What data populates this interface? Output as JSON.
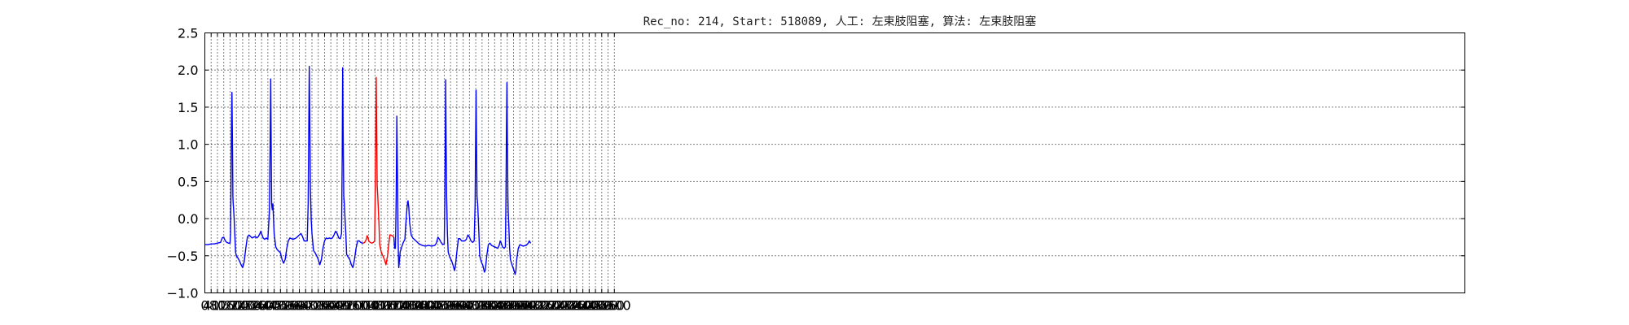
{
  "chart_data": {
    "type": "line",
    "title": "Rec_no: 214, Start: 518089, 人工: 左束肢阻塞, 算法: 左束肢阻塞",
    "xlabel": "",
    "ylabel": "",
    "xlim": [
      0,
      8000
    ],
    "ylim": [
      -1.0,
      2.5
    ],
    "grid": true,
    "y_ticks": [
      -1.0,
      -0.5,
      0.0,
      0.5,
      1.0,
      1.5,
      2.0,
      2.5
    ],
    "y_tick_labels": [
      "−1.0",
      "−0.5",
      "0.0",
      "0.5",
      "1.0",
      "1.5",
      "2.0",
      "2.5"
    ],
    "x_ticks": [
      0,
      40,
      80,
      120,
      160,
      200,
      240,
      280,
      320,
      360,
      400,
      440,
      480,
      520,
      560,
      600,
      640,
      680,
      720,
      760,
      800,
      840,
      880,
      920,
      960,
      1000,
      1040,
      1080,
      1120,
      1160,
      1200,
      1240,
      1280,
      1320,
      1360,
      1400,
      1440,
      1480,
      1520,
      1560,
      1600,
      1640,
      1680,
      1720,
      1760,
      1800,
      1840,
      1880,
      1920,
      1960,
      2000,
      2040,
      2080,
      2120,
      2160,
      2200,
      2240,
      2280,
      2320,
      2360,
      2400,
      2440,
      2480,
      2520,
      2560,
      2600
    ],
    "x_tick_labels": [
      "0",
      "40",
      "80",
      "120",
      "160",
      "200",
      "240",
      "280",
      "320",
      "360",
      "400",
      "440",
      "480",
      "520",
      "560",
      "600",
      "640",
      "680",
      "720",
      "760",
      "800",
      "840",
      "880",
      "920",
      "960",
      "1000",
      "1040",
      "1080",
      "1120",
      "1160",
      "1200",
      "1240",
      "1280",
      "1320",
      "1360",
      "1400",
      "1440",
      "1480",
      "1520",
      "1560",
      "1600",
      "1640",
      "1680",
      "1720",
      "1760",
      "1800",
      "1840",
      "1880",
      "1920",
      "1960",
      "2000",
      "2040",
      "2080",
      "2120",
      "2160",
      "2200",
      "2240",
      "2280",
      "2320",
      "2360",
      "2400",
      "2440",
      "2480",
      "2520",
      "2560",
      "2600"
    ],
    "series": [
      {
        "color": "#0000ff",
        "points": [
          [
            0,
            -0.35
          ],
          [
            20,
            -0.35
          ],
          [
            40,
            -0.34
          ],
          [
            60,
            -0.34
          ],
          [
            80,
            -0.33
          ],
          [
            100,
            -0.32
          ],
          [
            110,
            -0.26
          ],
          [
            120,
            -0.25
          ],
          [
            130,
            -0.3
          ],
          [
            140,
            -0.32
          ],
          [
            150,
            -0.33
          ],
          [
            160,
            -0.33
          ],
          [
            163,
            -0.2
          ],
          [
            166,
            0.4
          ],
          [
            169,
            1.2
          ],
          [
            172,
            1.7
          ],
          [
            175,
            1.1
          ],
          [
            178,
            0.3
          ],
          [
            180,
            0.2
          ],
          [
            182,
            0.15
          ],
          [
            186,
            0.0
          ],
          [
            190,
            -0.2
          ],
          [
            195,
            -0.45
          ],
          [
            200,
            -0.5
          ],
          [
            210,
            -0.53
          ],
          [
            220,
            -0.57
          ],
          [
            230,
            -0.62
          ],
          [
            240,
            -0.66
          ],
          [
            250,
            -0.58
          ],
          [
            260,
            -0.4
          ],
          [
            270,
            -0.25
          ],
          [
            280,
            -0.22
          ],
          [
            290,
            -0.24
          ],
          [
            300,
            -0.26
          ],
          [
            310,
            -0.25
          ],
          [
            320,
            -0.24
          ],
          [
            330,
            -0.26
          ],
          [
            340,
            -0.24
          ],
          [
            350,
            -0.2
          ],
          [
            355,
            -0.17
          ],
          [
            360,
            -0.2
          ],
          [
            370,
            -0.26
          ],
          [
            380,
            -0.28
          ],
          [
            390,
            -0.26
          ],
          [
            400,
            -0.28
          ],
          [
            410,
            0.1
          ],
          [
            414,
            0.9
          ],
          [
            418,
            1.88
          ],
          [
            421,
            1.0
          ],
          [
            424,
            0.2
          ],
          [
            428,
            0.12
          ],
          [
            432,
            0.2
          ],
          [
            436,
            0.0
          ],
          [
            440,
            -0.2
          ],
          [
            450,
            -0.38
          ],
          [
            460,
            -0.42
          ],
          [
            470,
            -0.44
          ],
          [
            480,
            -0.46
          ],
          [
            490,
            -0.55
          ],
          [
            500,
            -0.6
          ],
          [
            510,
            -0.55
          ],
          [
            520,
            -0.4
          ],
          [
            530,
            -0.3
          ],
          [
            540,
            -0.26
          ],
          [
            550,
            -0.27
          ],
          [
            560,
            -0.28
          ],
          [
            570,
            -0.27
          ],
          [
            580,
            -0.26
          ],
          [
            590,
            -0.24
          ],
          [
            600,
            -0.22
          ],
          [
            610,
            -0.2
          ],
          [
            620,
            -0.24
          ],
          [
            630,
            -0.3
          ],
          [
            650,
            -0.3
          ],
          [
            656,
            0.2
          ],
          [
            660,
            1.3
          ],
          [
            663,
            2.05
          ],
          [
            666,
            1.4
          ],
          [
            670,
            0.4
          ],
          [
            675,
            0.0
          ],
          [
            680,
            -0.2
          ],
          [
            690,
            -0.43
          ],
          [
            700,
            -0.46
          ],
          [
            710,
            -0.5
          ],
          [
            720,
            -0.55
          ],
          [
            730,
            -0.62
          ],
          [
            740,
            -0.55
          ],
          [
            750,
            -0.4
          ],
          [
            760,
            -0.3
          ],
          [
            770,
            -0.26
          ],
          [
            780,
            -0.27
          ],
          [
            790,
            -0.26
          ],
          [
            800,
            -0.27
          ],
          [
            810,
            -0.26
          ],
          [
            820,
            -0.22
          ],
          [
            830,
            -0.17
          ],
          [
            840,
            -0.2
          ],
          [
            850,
            -0.26
          ],
          [
            860,
            -0.27
          ],
          [
            868,
            -0.2
          ],
          [
            872,
            0.8
          ],
          [
            875,
            2.03
          ],
          [
            878,
            1.2
          ],
          [
            882,
            0.3
          ],
          [
            886,
            0.2
          ],
          [
            890,
            0.0
          ],
          [
            895,
            -0.2
          ],
          [
            900,
            -0.48
          ],
          [
            910,
            -0.52
          ],
          [
            920,
            -0.55
          ],
          [
            930,
            -0.62
          ],
          [
            940,
            -0.66
          ],
          [
            950,
            -0.55
          ],
          [
            960,
            -0.4
          ],
          [
            970,
            -0.3
          ],
          [
            980,
            -0.3
          ],
          [
            990,
            -0.32
          ],
          [
            1000,
            -0.33
          ],
          [
            1005,
            -0.33
          ]
        ]
      },
      {
        "color": "#ff0000",
        "points": [
          [
            1005,
            -0.33
          ],
          [
            1015,
            -0.32
          ],
          [
            1025,
            -0.28
          ],
          [
            1030,
            -0.23
          ],
          [
            1035,
            -0.25
          ],
          [
            1040,
            -0.3
          ],
          [
            1050,
            -0.32
          ],
          [
            1060,
            -0.33
          ],
          [
            1070,
            -0.32
          ],
          [
            1078,
            -0.3
          ],
          [
            1082,
            0.4
          ],
          [
            1085,
            1.2
          ],
          [
            1088,
            1.9
          ],
          [
            1091,
            1.2
          ],
          [
            1094,
            0.45
          ],
          [
            1098,
            0.3
          ],
          [
            1102,
            0.1
          ],
          [
            1106,
            -0.1
          ],
          [
            1110,
            -0.35
          ],
          [
            1120,
            -0.45
          ],
          [
            1130,
            -0.5
          ],
          [
            1140,
            -0.55
          ],
          [
            1150,
            -0.62
          ],
          [
            1160,
            -0.5
          ],
          [
            1170,
            -0.3
          ],
          [
            1175,
            -0.22
          ],
          [
            1180,
            -0.22
          ],
          [
            1190,
            -0.23
          ],
          [
            1200,
            -0.25
          ]
        ]
      },
      {
        "color": "#0000ff",
        "points": [
          [
            1200,
            -0.25
          ],
          [
            1205,
            -0.4
          ],
          [
            1210,
            -0.4
          ],
          [
            1215,
            0.3
          ],
          [
            1219,
            1.38
          ],
          [
            1223,
            0.6
          ],
          [
            1227,
            -0.3
          ],
          [
            1231,
            -0.66
          ],
          [
            1236,
            -0.55
          ],
          [
            1240,
            -0.45
          ],
          [
            1250,
            -0.38
          ],
          [
            1260,
            -0.32
          ],
          [
            1270,
            -0.28
          ],
          [
            1275,
            -0.1
          ],
          [
            1280,
            0.05
          ],
          [
            1285,
            0.18
          ],
          [
            1290,
            0.24
          ],
          [
            1295,
            0.15
          ],
          [
            1300,
            -0.05
          ],
          [
            1310,
            -0.22
          ],
          [
            1320,
            -0.26
          ],
          [
            1340,
            -0.3
          ],
          [
            1360,
            -0.34
          ],
          [
            1380,
            -0.36
          ],
          [
            1400,
            -0.37
          ],
          [
            1420,
            -0.36
          ],
          [
            1440,
            -0.37
          ],
          [
            1460,
            -0.36
          ],
          [
            1470,
            -0.33
          ],
          [
            1480,
            -0.25
          ],
          [
            1490,
            -0.28
          ],
          [
            1500,
            -0.32
          ],
          [
            1510,
            -0.35
          ],
          [
            1520,
            -0.34
          ],
          [
            1524,
            0.3
          ],
          [
            1527,
            1.2
          ],
          [
            1529,
            1.87
          ],
          [
            1532,
            1.0
          ],
          [
            1535,
            0.3
          ],
          [
            1540,
            -0.2
          ],
          [
            1545,
            -0.45
          ],
          [
            1555,
            -0.52
          ],
          [
            1565,
            -0.56
          ],
          [
            1575,
            -0.62
          ],
          [
            1585,
            -0.7
          ],
          [
            1590,
            -0.65
          ],
          [
            1600,
            -0.45
          ],
          [
            1610,
            -0.27
          ],
          [
            1620,
            -0.27
          ],
          [
            1630,
            -0.3
          ],
          [
            1640,
            -0.3
          ],
          [
            1650,
            -0.3
          ],
          [
            1660,
            -0.28
          ],
          [
            1670,
            -0.22
          ],
          [
            1680,
            -0.25
          ],
          [
            1690,
            -0.3
          ],
          [
            1700,
            -0.32
          ],
          [
            1710,
            -0.3
          ],
          [
            1716,
            0.2
          ],
          [
            1719,
            1.0
          ],
          [
            1722,
            1.73
          ],
          [
            1725,
            1.0
          ],
          [
            1728,
            0.3
          ],
          [
            1732,
            0.2
          ],
          [
            1736,
            0.0
          ],
          [
            1740,
            -0.2
          ],
          [
            1745,
            -0.5
          ],
          [
            1755,
            -0.58
          ],
          [
            1765,
            -0.63
          ],
          [
            1775,
            -0.72
          ],
          [
            1780,
            -0.7
          ],
          [
            1790,
            -0.5
          ],
          [
            1800,
            -0.35
          ],
          [
            1810,
            -0.33
          ],
          [
            1820,
            -0.36
          ],
          [
            1840,
            -0.38
          ],
          [
            1860,
            -0.4
          ],
          [
            1870,
            -0.35
          ],
          [
            1875,
            -0.3
          ],
          [
            1880,
            -0.32
          ],
          [
            1890,
            -0.38
          ],
          [
            1900,
            -0.4
          ],
          [
            1908,
            -0.38
          ],
          [
            1912,
            0.3
          ],
          [
            1915,
            1.2
          ],
          [
            1918,
            1.83
          ],
          [
            1921,
            1.0
          ],
          [
            1924,
            0.3
          ],
          [
            1926,
            0.1
          ],
          [
            1930,
            -0.1
          ],
          [
            1935,
            -0.4
          ],
          [
            1940,
            -0.55
          ],
          [
            1950,
            -0.62
          ],
          [
            1960,
            -0.68
          ],
          [
            1970,
            -0.75
          ],
          [
            1975,
            -0.7
          ],
          [
            1980,
            -0.55
          ],
          [
            1990,
            -0.4
          ],
          [
            2000,
            -0.35
          ],
          [
            2020,
            -0.37
          ],
          [
            2040,
            -0.36
          ],
          [
            2050,
            -0.34
          ],
          [
            2060,
            -0.3
          ],
          [
            2065,
            -0.32
          ],
          [
            2070,
            -0.33
          ]
        ]
      }
    ]
  }
}
